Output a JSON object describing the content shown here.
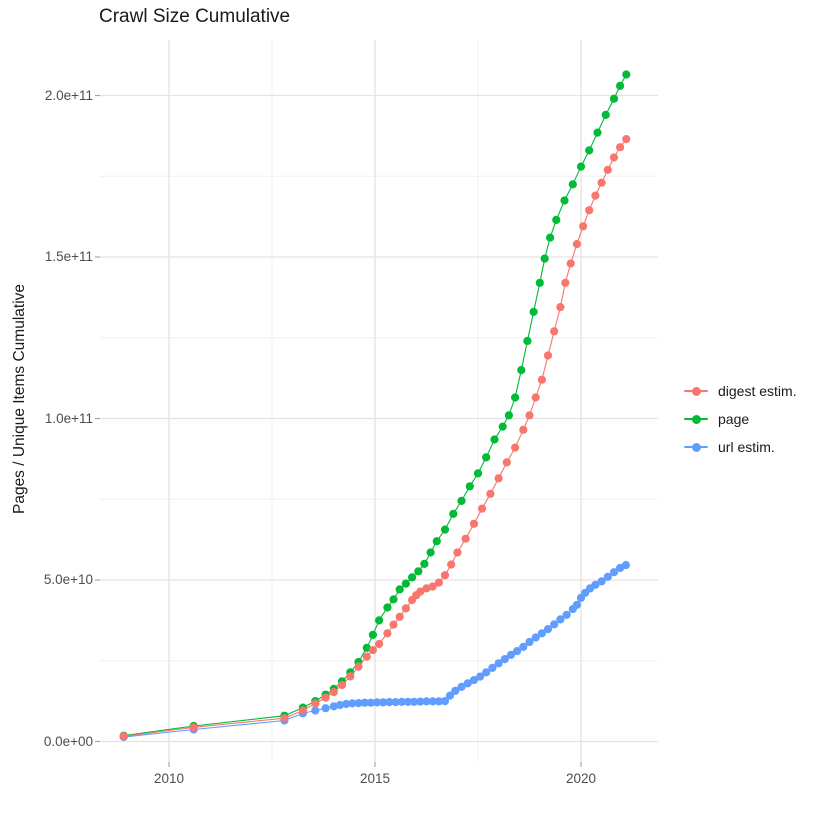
{
  "title": "Crawl Size Cumulative",
  "legend": {
    "items": [
      {
        "label": "digest estim.",
        "color": "#F8766D"
      },
      {
        "label": "page",
        "color": "#00BA38"
      },
      {
        "label": "url estim.",
        "color": "#619CFF"
      }
    ]
  },
  "axes": {
    "x": {
      "ticks": [
        {
          "value": 2010,
          "label": "2010"
        },
        {
          "value": 2015,
          "label": "2015"
        },
        {
          "value": 2020,
          "label": "2020"
        }
      ],
      "minor": [
        2012.5,
        2017.5
      ]
    },
    "y": {
      "title": "Pages / Unique Items Cumulative",
      "ticks": [
        {
          "value": 0,
          "label": "0.0e+00"
        },
        {
          "value": 50,
          "label": "5.0e+10"
        },
        {
          "value": 100,
          "label": "1.0e+11"
        },
        {
          "value": 150,
          "label": "1.5e+11"
        },
        {
          "value": 200,
          "label": "2.0e+11"
        }
      ],
      "minor": [
        25,
        75,
        125,
        175
      ]
    }
  },
  "chart_data": {
    "type": "line",
    "title": "Crawl Size Cumulative",
    "xlabel": "",
    "ylabel": "Pages / Unique Items Cumulative",
    "value_unit": "billions (1e9); e.g. 206.5 means 2.065e+11",
    "x_unit": "year (decimal)",
    "xlim": [
      2008.3,
      2021.9
    ],
    "ylim": [
      0,
      217
    ],
    "grid": true,
    "legend_position": "right",
    "marker": "point-with-line",
    "series": [
      {
        "name": "digest estim.",
        "color": "#F8766D",
        "points": [
          [
            2008.9,
            1.6
          ],
          [
            2010.6,
            4.4
          ],
          [
            2012.8,
            7.2
          ],
          [
            2013.25,
            9.6
          ],
          [
            2013.55,
            11.8
          ],
          [
            2013.8,
            13.6
          ],
          [
            2014.0,
            15.3
          ],
          [
            2014.2,
            17.5
          ],
          [
            2014.4,
            20.2
          ],
          [
            2014.6,
            23.2
          ],
          [
            2014.8,
            26.3
          ],
          [
            2014.95,
            28.3
          ],
          [
            2015.1,
            30.2
          ],
          [
            2015.3,
            33.5
          ],
          [
            2015.45,
            36.2
          ],
          [
            2015.6,
            38.6
          ],
          [
            2015.75,
            41.2
          ],
          [
            2015.9,
            43.8
          ],
          [
            2016.0,
            45.3
          ],
          [
            2016.1,
            46.4
          ],
          [
            2016.25,
            47.4
          ],
          [
            2016.4,
            48.0
          ],
          [
            2016.55,
            49.2
          ],
          [
            2016.7,
            51.5
          ],
          [
            2016.85,
            54.8
          ],
          [
            2017.0,
            58.5
          ],
          [
            2017.2,
            62.8
          ],
          [
            2017.4,
            67.4
          ],
          [
            2017.6,
            72.1
          ],
          [
            2017.8,
            76.7
          ],
          [
            2018.0,
            81.5
          ],
          [
            2018.2,
            86.4
          ],
          [
            2018.4,
            91.0
          ],
          [
            2018.6,
            96.5
          ],
          [
            2018.75,
            101.0
          ],
          [
            2018.9,
            106.5
          ],
          [
            2019.05,
            112.0
          ],
          [
            2019.2,
            119.5
          ],
          [
            2019.35,
            127.0
          ],
          [
            2019.5,
            134.5
          ],
          [
            2019.62,
            142.0
          ],
          [
            2019.75,
            148.0
          ],
          [
            2019.9,
            154.0
          ],
          [
            2020.05,
            159.5
          ],
          [
            2020.2,
            164.5
          ],
          [
            2020.35,
            169.0
          ],
          [
            2020.5,
            173.0
          ],
          [
            2020.65,
            177.0
          ],
          [
            2020.8,
            180.8
          ],
          [
            2020.95,
            184.0
          ],
          [
            2021.1,
            186.5
          ]
        ]
      },
      {
        "name": "page",
        "color": "#00BA38",
        "points": [
          [
            2008.9,
            1.8
          ],
          [
            2010.6,
            4.8
          ],
          [
            2012.8,
            8.0
          ],
          [
            2013.25,
            10.5
          ],
          [
            2013.55,
            12.5
          ],
          [
            2013.8,
            14.5
          ],
          [
            2014.0,
            16.3
          ],
          [
            2014.2,
            18.6
          ],
          [
            2014.4,
            21.4
          ],
          [
            2014.6,
            24.6
          ],
          [
            2014.8,
            29.0
          ],
          [
            2014.95,
            33.0
          ],
          [
            2015.1,
            37.5
          ],
          [
            2015.3,
            41.5
          ],
          [
            2015.45,
            44.0
          ],
          [
            2015.6,
            47.1
          ],
          [
            2015.75,
            48.9
          ],
          [
            2015.9,
            50.8
          ],
          [
            2016.05,
            52.7
          ],
          [
            2016.2,
            55.0
          ],
          [
            2016.35,
            58.5
          ],
          [
            2016.5,
            62.0
          ],
          [
            2016.7,
            65.6
          ],
          [
            2016.9,
            70.5
          ],
          [
            2017.1,
            74.5
          ],
          [
            2017.3,
            79.0
          ],
          [
            2017.5,
            83.0
          ],
          [
            2017.7,
            88.0
          ],
          [
            2017.9,
            93.5
          ],
          [
            2018.1,
            97.5
          ],
          [
            2018.25,
            101.0
          ],
          [
            2018.4,
            106.5
          ],
          [
            2018.55,
            115.0
          ],
          [
            2018.7,
            124.0
          ],
          [
            2018.85,
            133.0
          ],
          [
            2019.0,
            142.0
          ],
          [
            2019.12,
            149.5
          ],
          [
            2019.25,
            156.0
          ],
          [
            2019.4,
            161.5
          ],
          [
            2019.6,
            167.5
          ],
          [
            2019.8,
            172.5
          ],
          [
            2020.0,
            178.0
          ],
          [
            2020.2,
            183.0
          ],
          [
            2020.4,
            188.5
          ],
          [
            2020.6,
            194.0
          ],
          [
            2020.8,
            199.0
          ],
          [
            2020.95,
            203.0
          ],
          [
            2021.1,
            206.5
          ]
        ]
      },
      {
        "name": "url estim.",
        "color": "#619CFF",
        "points": [
          [
            2008.9,
            1.4
          ],
          [
            2010.6,
            3.7
          ],
          [
            2012.8,
            6.5
          ],
          [
            2013.25,
            8.7
          ],
          [
            2013.55,
            9.6
          ],
          [
            2013.8,
            10.3
          ],
          [
            2014.0,
            10.9
          ],
          [
            2014.15,
            11.3
          ],
          [
            2014.3,
            11.6
          ],
          [
            2014.45,
            11.8
          ],
          [
            2014.6,
            11.9
          ],
          [
            2014.75,
            12.0
          ],
          [
            2014.9,
            12.0
          ],
          [
            2015.05,
            12.1
          ],
          [
            2015.2,
            12.1
          ],
          [
            2015.35,
            12.2
          ],
          [
            2015.5,
            12.2
          ],
          [
            2015.65,
            12.25
          ],
          [
            2015.8,
            12.3
          ],
          [
            2015.95,
            12.3
          ],
          [
            2016.1,
            12.35
          ],
          [
            2016.25,
            12.4
          ],
          [
            2016.4,
            12.4
          ],
          [
            2016.55,
            12.45
          ],
          [
            2016.7,
            12.5
          ],
          [
            2016.82,
            14.2
          ],
          [
            2016.95,
            15.7
          ],
          [
            2017.1,
            16.9
          ],
          [
            2017.25,
            18.0
          ],
          [
            2017.4,
            19.0
          ],
          [
            2017.55,
            20.1
          ],
          [
            2017.7,
            21.4
          ],
          [
            2017.85,
            22.8
          ],
          [
            2018.0,
            24.2
          ],
          [
            2018.15,
            25.5
          ],
          [
            2018.3,
            26.8
          ],
          [
            2018.45,
            28.0
          ],
          [
            2018.6,
            29.3
          ],
          [
            2018.75,
            30.8
          ],
          [
            2018.9,
            32.2
          ],
          [
            2019.05,
            33.5
          ],
          [
            2019.2,
            34.8
          ],
          [
            2019.35,
            36.3
          ],
          [
            2019.5,
            37.8
          ],
          [
            2019.65,
            39.2
          ],
          [
            2019.8,
            41.0
          ],
          [
            2019.9,
            42.3
          ],
          [
            2020.0,
            44.5
          ],
          [
            2020.1,
            46.0
          ],
          [
            2020.22,
            47.4
          ],
          [
            2020.35,
            48.5
          ],
          [
            2020.5,
            49.6
          ],
          [
            2020.65,
            51.0
          ],
          [
            2020.8,
            52.4
          ],
          [
            2020.95,
            53.7
          ],
          [
            2021.09,
            54.6
          ]
        ]
      }
    ]
  },
  "style": {
    "grid_major_color": "#e3e3e3",
    "grid_minor_color": "#f0f0f0",
    "tick_color": "#a8a8a8",
    "text_color": "#4d4d4d"
  }
}
